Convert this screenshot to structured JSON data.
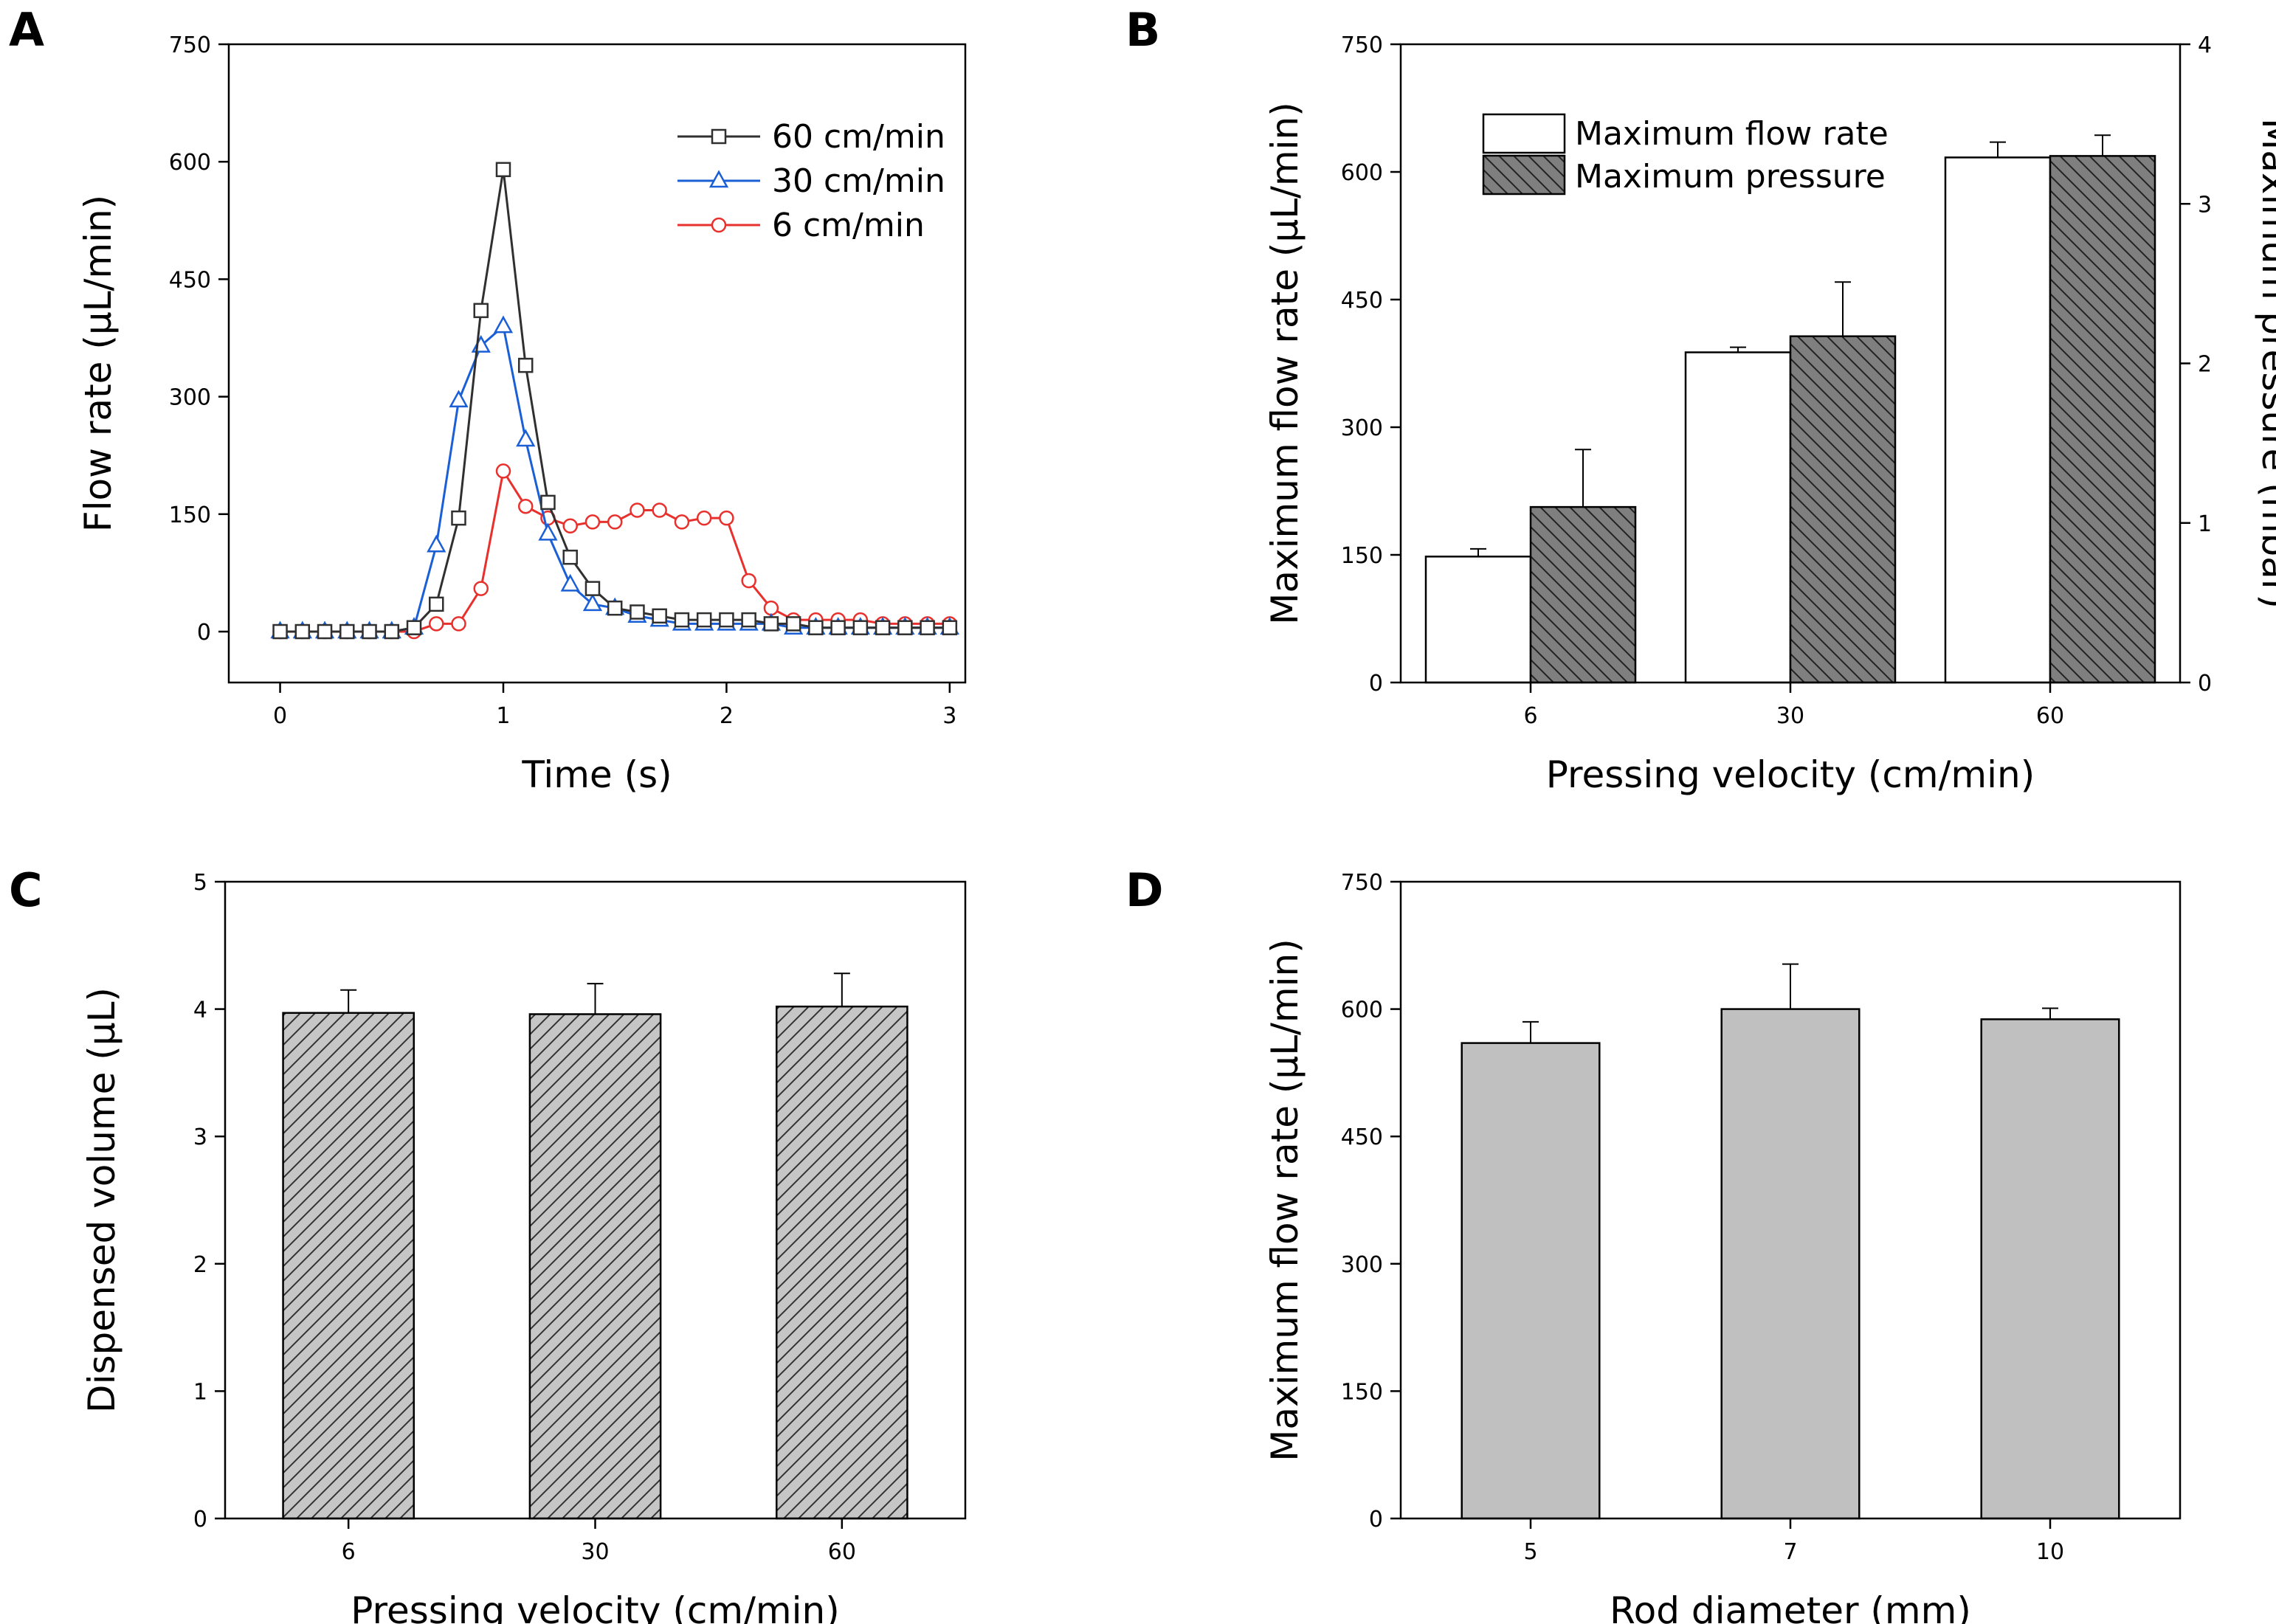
{
  "chart_data": [
    {
      "panel": "A",
      "type": "line",
      "xlabel": "Time (s)",
      "ylabel": "Flow rate (μL/min)",
      "xlim": [
        -0.23,
        3.07
      ],
      "ylim": [
        -65,
        750
      ],
      "xticks": [
        0,
        1,
        2,
        3
      ],
      "yticks": [
        0,
        150,
        300,
        450,
        600,
        750
      ],
      "legend_position": "top-right",
      "series": [
        {
          "name": "60 cm/min",
          "color": "#303030",
          "marker": "square",
          "x": [
            0,
            0.1,
            0.2,
            0.3,
            0.4,
            0.5,
            0.6,
            0.7,
            0.8,
            0.9,
            1.0,
            1.1,
            1.2,
            1.3,
            1.4,
            1.5,
            1.6,
            1.7,
            1.8,
            1.9,
            2.0,
            2.1,
            2.2,
            2.3,
            2.4,
            2.5,
            2.6,
            2.7,
            2.8,
            2.9,
            3.0
          ],
          "values": [
            0,
            0,
            0,
            0,
            0,
            0,
            5,
            35,
            145,
            410,
            590,
            340,
            165,
            95,
            55,
            30,
            25,
            20,
            15,
            15,
            15,
            15,
            10,
            10,
            5,
            5,
            5,
            5,
            5,
            5,
            5
          ]
        },
        {
          "name": "30 cm/min",
          "color": "#1a5fd6",
          "marker": "triangle",
          "x": [
            0,
            0.1,
            0.2,
            0.3,
            0.4,
            0.5,
            0.6,
            0.7,
            0.8,
            0.9,
            1.0,
            1.1,
            1.2,
            1.3,
            1.4,
            1.5,
            1.6,
            1.7,
            1.8,
            1.9,
            2.0,
            2.1,
            2.2,
            2.3,
            2.4,
            2.5,
            2.6,
            2.7,
            2.8,
            2.9,
            3.0
          ],
          "values": [
            0,
            0,
            0,
            0,
            0,
            0,
            5,
            110,
            295,
            365,
            390,
            245,
            125,
            60,
            35,
            30,
            20,
            15,
            10,
            10,
            10,
            10,
            10,
            5,
            5,
            5,
            5,
            5,
            5,
            5,
            5
          ]
        },
        {
          "name": "6 cm/min",
          "color": "#e8302c",
          "marker": "circle",
          "x": [
            0,
            0.1,
            0.2,
            0.3,
            0.4,
            0.5,
            0.6,
            0.7,
            0.8,
            0.9,
            1.0,
            1.1,
            1.2,
            1.3,
            1.4,
            1.5,
            1.6,
            1.7,
            1.8,
            1.9,
            2.0,
            2.1,
            2.2,
            2.3,
            2.4,
            2.5,
            2.6,
            2.7,
            2.8,
            2.9,
            3.0
          ],
          "values": [
            0,
            0,
            0,
            0,
            0,
            0,
            0,
            10,
            10,
            55,
            205,
            160,
            145,
            135,
            140,
            140,
            155,
            155,
            140,
            145,
            145,
            65,
            30,
            15,
            15,
            15,
            15,
            10,
            10,
            10,
            10
          ]
        }
      ]
    },
    {
      "panel": "B",
      "type": "bar",
      "xlabel": "Pressing velocity (cm/min)",
      "ylabel": "Maximum flow rate (μL/min)",
      "y2label": "Maximum pressure (mbar)",
      "categories": [
        "6",
        "30",
        "60"
      ],
      "ylim": [
        0,
        750
      ],
      "y2lim": [
        0,
        4
      ],
      "yticks": [
        0,
        150,
        300,
        450,
        600,
        750
      ],
      "y2ticks": [
        0,
        1,
        2,
        3,
        4
      ],
      "legend_position": "top-left",
      "series": [
        {
          "name": "Maximum flow rate",
          "axis": "left",
          "fill": "#ffffff",
          "pattern": "none",
          "values": [
            148,
            388,
            617
          ],
          "errors": [
            9,
            6,
            18
          ]
        },
        {
          "name": "Maximum pressure",
          "axis": "right",
          "fill": "#7f7f7f",
          "pattern": "hatch-backslash",
          "values": [
            1.1,
            2.17,
            3.3
          ],
          "errors": [
            0.36,
            0.34,
            0.13
          ]
        }
      ]
    },
    {
      "panel": "C",
      "type": "bar",
      "xlabel": "Pressing velocity (cm/min)",
      "ylabel": "Dispensed volume (μL)",
      "categories": [
        "6",
        "30",
        "60"
      ],
      "ylim": [
        0,
        5
      ],
      "yticks": [
        0,
        1,
        2,
        3,
        4,
        5
      ],
      "series": [
        {
          "name": "Dispensed volume",
          "fill": "#c6c6c6",
          "pattern": "hatch-slash",
          "values": [
            3.97,
            3.96,
            4.02
          ],
          "errors": [
            0.18,
            0.24,
            0.26
          ]
        }
      ]
    },
    {
      "panel": "D",
      "type": "bar",
      "xlabel": "Rod diameter (mm)",
      "ylabel": "Maximum flow rate (μL/min)",
      "categories": [
        "5",
        "7",
        "10"
      ],
      "ylim": [
        0,
        750
      ],
      "yticks": [
        0,
        150,
        300,
        450,
        600,
        750
      ],
      "series": [
        {
          "name": "Maximum flow rate",
          "fill": "#c0c0c0",
          "pattern": "none",
          "values": [
            560,
            600,
            588
          ],
          "errors": [
            25,
            53,
            13
          ]
        }
      ]
    }
  ]
}
